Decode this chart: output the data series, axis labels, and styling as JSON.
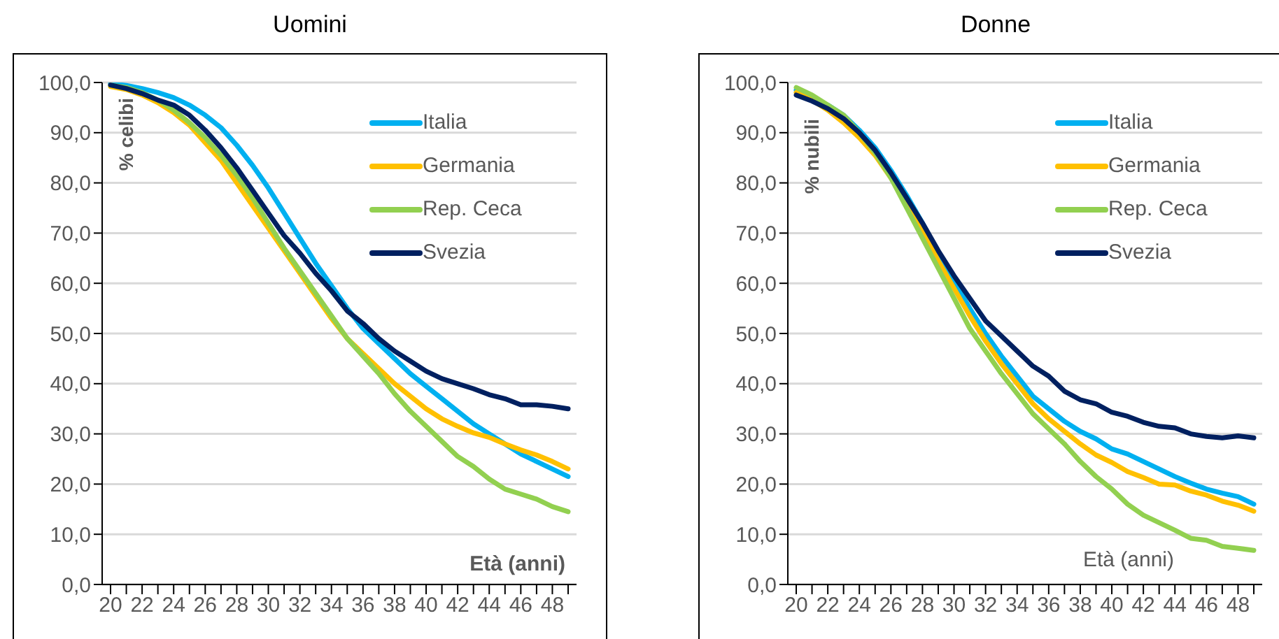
{
  "chart_data": [
    {
      "type": "line",
      "title": "Uomini",
      "xlabel": "Età (anni)",
      "ylabel": "% celibi",
      "categories": [
        "20",
        null,
        "22",
        null,
        "24",
        null,
        "26",
        null,
        "28",
        null,
        "30",
        null,
        "32",
        null,
        "34",
        null,
        "36",
        null,
        "38",
        null,
        "40",
        null,
        "42",
        null,
        "44",
        null,
        "46",
        null,
        "48",
        null
      ],
      "series": [
        {
          "name": "Italia",
          "color": "#00b0f0",
          "values": [
            99.8,
            99.4,
            98.8,
            98,
            97,
            95.5,
            93.5,
            91,
            87.5,
            83.5,
            79,
            74,
            69,
            64,
            59.5,
            55,
            51,
            48,
            45,
            42,
            39.5,
            37,
            34.5,
            32,
            30,
            28,
            26,
            24.5,
            23,
            21.5
          ]
        },
        {
          "name": "Germania",
          "color": "#ffc000",
          "values": [
            99.2,
            98.6,
            97.5,
            96,
            94,
            91.5,
            88,
            84.5,
            80,
            75.5,
            71,
            66.5,
            62,
            57.5,
            53,
            49,
            46,
            43,
            40,
            37.5,
            35,
            33,
            31.5,
            30.2,
            29.3,
            28,
            26.8,
            25.8,
            24.5,
            23
          ]
        },
        {
          "name": "Rep. Ceca",
          "color": "#92d050",
          "values": [
            99.5,
            99,
            98,
            96.5,
            94.5,
            92,
            89,
            85.5,
            81.5,
            77,
            72,
            67,
            62.5,
            58,
            53.5,
            49,
            45.5,
            42,
            38,
            34.5,
            31.5,
            28.5,
            25.5,
            23.5,
            21,
            19,
            18,
            17,
            15.5,
            14.5
          ]
        },
        {
          "name": "Svezia",
          "color": "#002060",
          "values": [
            99.5,
            98.8,
            97.8,
            96.5,
            95.5,
            93.5,
            90.5,
            87,
            83,
            78.5,
            74,
            69.5,
            66,
            62,
            58.5,
            54.5,
            52,
            49,
            46.5,
            44.5,
            42.5,
            41,
            40,
            39,
            37.8,
            37,
            35.8,
            35.8,
            35.5,
            35
          ]
        }
      ],
      "ylim": [
        0,
        100
      ],
      "yticks": [
        {
          "value": 0,
          "label": "0,0"
        },
        {
          "value": 10,
          "label": "10,0"
        },
        {
          "value": 20,
          "label": "20,0"
        },
        {
          "value": 30,
          "label": "30,0"
        },
        {
          "value": 40,
          "label": "40,0"
        },
        {
          "value": 50,
          "label": "50,0"
        },
        {
          "value": 60,
          "label": "60,0"
        },
        {
          "value": 70,
          "label": "70,0"
        },
        {
          "value": 80,
          "label": "80,0"
        },
        {
          "value": 90,
          "label": "90,0"
        },
        {
          "value": 100,
          "label": "100,0"
        }
      ],
      "grid": "y",
      "legend": "top right",
      "marker": "none",
      "line_style": "solid"
    },
    {
      "type": "line",
      "title": "Donne",
      "xlabel": "Età (anni)",
      "ylabel": "% nubili",
      "categories": [
        "20",
        null,
        "22",
        null,
        "24",
        null,
        "26",
        null,
        "28",
        null,
        "30",
        null,
        "32",
        null,
        "34",
        null,
        "36",
        null,
        "38",
        null,
        "40",
        null,
        "42",
        null,
        "44",
        null,
        "46",
        null,
        "48",
        null
      ],
      "series": [
        {
          "name": "Italia",
          "color": "#00b0f0",
          "values": [
            98.5,
            97,
            95.5,
            93.5,
            90.5,
            87,
            82.5,
            77.5,
            72,
            66,
            60.5,
            55,
            50,
            45.5,
            41.5,
            37.5,
            35,
            32.5,
            30.5,
            29,
            27,
            26,
            24.5,
            23,
            21.5,
            20.2,
            19,
            18.2,
            17.5,
            16
          ]
        },
        {
          "name": "Germania",
          "color": "#ffc000",
          "values": [
            98,
            96.5,
            94.5,
            92,
            89,
            85.5,
            81,
            76,
            70.5,
            64.5,
            59,
            53.5,
            48.5,
            44,
            40,
            36,
            33,
            30.5,
            28,
            25.8,
            24.3,
            22.5,
            21.3,
            20,
            19.8,
            18.6,
            17.8,
            16.6,
            15.8,
            14.6
          ]
        },
        {
          "name": "Rep. Ceca",
          "color": "#92d050",
          "values": [
            99,
            97.5,
            95.5,
            93.5,
            90,
            86,
            81,
            75,
            69,
            63,
            57,
            51,
            46.5,
            42,
            38,
            34,
            31,
            28,
            24.5,
            21.5,
            19,
            16,
            13.8,
            12.3,
            10.8,
            9.2,
            8.8,
            7.6,
            7.2,
            6.8
          ]
        },
        {
          "name": "Svezia",
          "color": "#002060",
          "values": [
            97.5,
            96.3,
            94.8,
            92.8,
            90,
            86.5,
            82,
            77,
            72,
            66.5,
            61.5,
            57,
            52.5,
            49.5,
            46.5,
            43.5,
            41.5,
            38.5,
            36.8,
            36,
            34.3,
            33.5,
            32.3,
            31.5,
            31.2,
            30,
            29.5,
            29.2,
            29.6,
            29.2
          ]
        }
      ],
      "ylim": [
        0,
        100
      ],
      "yticks": [
        {
          "value": 0,
          "label": "0,0"
        },
        {
          "value": 10,
          "label": "10,0"
        },
        {
          "value": 20,
          "label": "20,0"
        },
        {
          "value": 30,
          "label": "30,0"
        },
        {
          "value": 40,
          "label": "40,0"
        },
        {
          "value": 50,
          "label": "50,0"
        },
        {
          "value": 60,
          "label": "60,0"
        },
        {
          "value": 70,
          "label": "70,0"
        },
        {
          "value": 80,
          "label": "80,0"
        },
        {
          "value": 90,
          "label": "90,0"
        },
        {
          "value": 100,
          "label": "100,0"
        }
      ],
      "grid": "y",
      "legend": "top right",
      "marker": "none",
      "line_style": "solid"
    }
  ]
}
